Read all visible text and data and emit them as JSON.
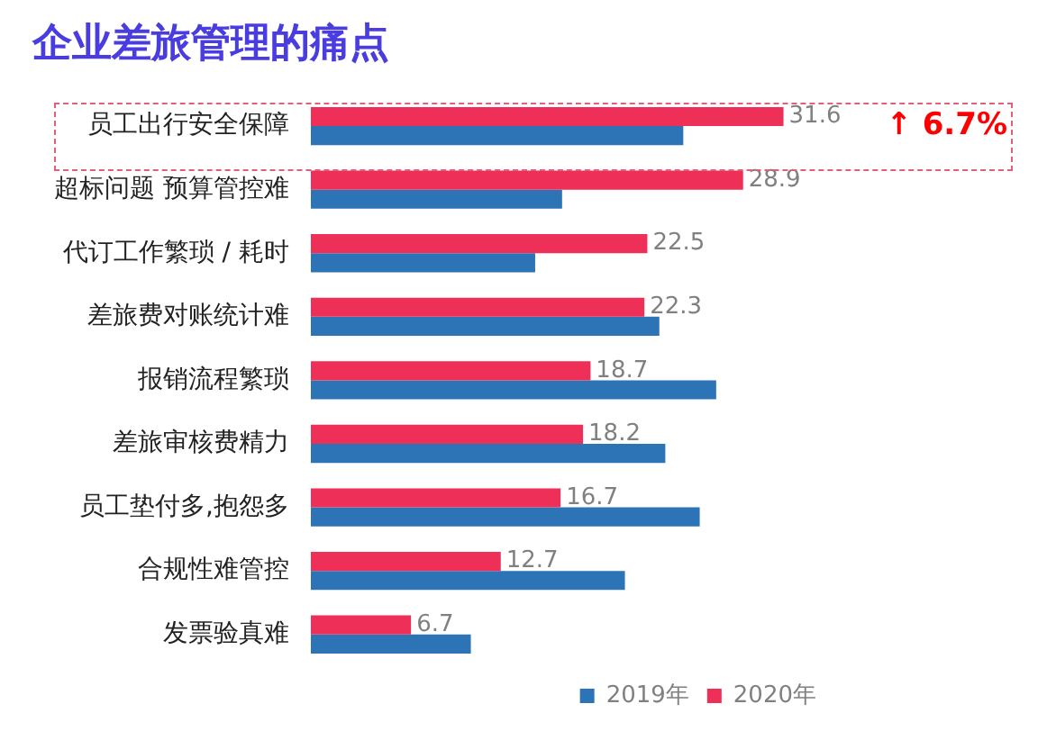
{
  "chart_data": {
    "type": "bar",
    "orientation": "horizontal",
    "title": "企业差旅管理的痛点",
    "categories": [
      "员工出行安全保障",
      "超标问题 预算管控难",
      "代订工作繁琐 / 耗时",
      "差旅费对账统计难",
      "报销流程繁琐",
      "差旅审核费精力",
      "员工垫付多,抱怨多",
      "合规性难管控",
      "发票验真难"
    ],
    "series": [
      {
        "name": "2020年",
        "color": "#ee2f58",
        "values": [
          31.6,
          28.9,
          22.5,
          22.3,
          18.7,
          18.2,
          16.7,
          12.7,
          6.7
        ],
        "value_labels": [
          "31.6",
          "28.9",
          "22.5",
          "22.3",
          "18.7",
          "18.2",
          "16.7",
          "12.7",
          "6.7"
        ]
      },
      {
        "name": "2019年",
        "color": "#2c74b6",
        "values": [
          24.9,
          16.8,
          15.0,
          23.3,
          27.1,
          23.7,
          26.0,
          21.0,
          10.7
        ]
      }
    ],
    "legend": "bottom right",
    "grid": false,
    "annotations": [
      "↑ 6.7%"
    ]
  }
}
